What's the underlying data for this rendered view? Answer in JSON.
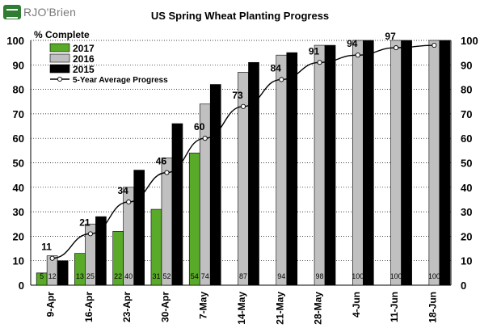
{
  "logo": {
    "text": "RJO'Brien"
  },
  "chart_data": {
    "type": "bar",
    "title": "US Spring Wheat Planting Progress",
    "ylabel": "% Complete",
    "categories": [
      "9-Apr",
      "16-Apr",
      "23-Apr",
      "30-Apr",
      "7-May",
      "14-May",
      "21-May",
      "28-May",
      "4-Jun",
      "11-Jun",
      "18-Jun"
    ],
    "ylim": [
      0,
      100
    ],
    "yticks": [
      0,
      10,
      20,
      30,
      40,
      50,
      60,
      70,
      80,
      90,
      100
    ],
    "grid": "horizontal dotted",
    "legend_position": "top-left",
    "series": [
      {
        "name": "2017",
        "type": "bar",
        "color": "#5aaa2a",
        "values": [
          5,
          13,
          22,
          31,
          54,
          null,
          null,
          null,
          null,
          null,
          null
        ],
        "labels": [
          "5",
          "13",
          "22",
          "31",
          "54",
          null,
          null,
          null,
          null,
          null,
          null
        ]
      },
      {
        "name": "2016",
        "type": "bar",
        "color": "#c0c0c0",
        "values": [
          12,
          25,
          40,
          52,
          74,
          87,
          94,
          98,
          100,
          100,
          100
        ],
        "labels": [
          "12",
          "25",
          "40",
          "52",
          "74",
          "87",
          "94",
          "98",
          "100",
          "100",
          "100"
        ]
      },
      {
        "name": "2015",
        "type": "bar",
        "color": "#000000",
        "values": [
          10,
          28,
          47,
          66,
          82,
          91,
          95,
          98,
          100,
          100,
          100
        ],
        "labels": []
      },
      {
        "name": "5-Year Average Progress",
        "type": "line",
        "color": "#000000",
        "values": [
          11,
          21,
          34,
          46,
          60,
          73,
          84,
          91,
          94,
          97,
          98
        ],
        "labels": [
          "11",
          "21",
          "34",
          "46",
          "60",
          "73",
          "84",
          "91",
          "94",
          "97",
          null
        ]
      }
    ]
  }
}
